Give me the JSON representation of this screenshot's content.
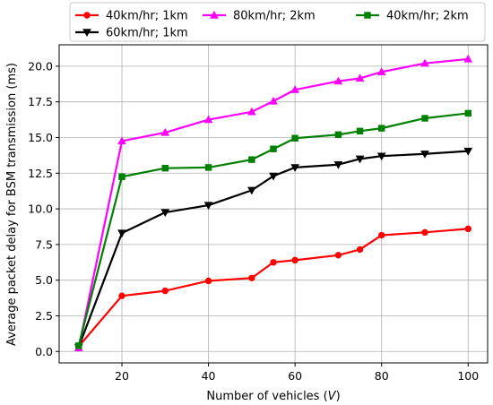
{
  "chart_data": {
    "type": "line",
    "title": "",
    "xlabel": "Number of vehicles ($V$)",
    "xlabel_main": "Number of vehicles (",
    "xlabel_var": "V",
    "xlabel_close": ")",
    "ylabel": "Average packet delay for BSM transmission (ms)",
    "xlim": [
      5.5,
      104.5
    ],
    "ylim": [
      -0.8,
      21.5
    ],
    "xticks": [
      20,
      40,
      60,
      80,
      100
    ],
    "xtick_labels": [
      "20",
      "40",
      "60",
      "80",
      "100"
    ],
    "yticks": [
      0.0,
      2.5,
      5.0,
      7.5,
      10.0,
      12.5,
      15.0,
      17.5,
      20.0
    ],
    "ytick_labels": [
      "0.0",
      "2.5",
      "5.0",
      "7.5",
      "10.0",
      "12.5",
      "15.0",
      "17.5",
      "20.0"
    ],
    "grid": true,
    "legend_placement": "top",
    "series": [
      {
        "name": "40km/hr; 1km",
        "color": "#ff0000",
        "marker": "circle",
        "x": [
          10,
          20,
          30,
          40,
          50,
          55,
          60,
          70,
          75,
          80,
          90,
          100
        ],
        "y": [
          0.35,
          3.9,
          4.25,
          4.95,
          5.15,
          6.25,
          6.4,
          6.75,
          7.15,
          8.15,
          8.35,
          8.6
        ]
      },
      {
        "name": "60km/hr; 1km",
        "color": "#000000",
        "marker": "triangle-down",
        "x": [
          10,
          20,
          30,
          40,
          50,
          55,
          60,
          70,
          75,
          80,
          90,
          100
        ],
        "y": [
          0.3,
          8.3,
          9.75,
          10.25,
          11.3,
          12.3,
          12.9,
          13.1,
          13.5,
          13.7,
          13.85,
          14.05
        ]
      },
      {
        "name": "80km/hr; 2km",
        "color": "#ff00ff",
        "marker": "triangle-up",
        "x": [
          10,
          20,
          30,
          40,
          50,
          55,
          60,
          70,
          75,
          80,
          90,
          100
        ],
        "y": [
          0.25,
          14.75,
          15.35,
          16.25,
          16.8,
          17.55,
          18.35,
          18.95,
          19.15,
          19.6,
          20.2,
          20.5
        ]
      },
      {
        "name": "40km/hr; 2km",
        "color": "#008000",
        "marker": "square",
        "x": [
          10,
          20,
          30,
          40,
          50,
          55,
          60,
          70,
          75,
          80,
          90,
          100
        ],
        "y": [
          0.4,
          12.25,
          12.85,
          12.9,
          13.45,
          14.2,
          14.95,
          15.2,
          15.45,
          15.65,
          16.35,
          16.7
        ]
      }
    ]
  }
}
